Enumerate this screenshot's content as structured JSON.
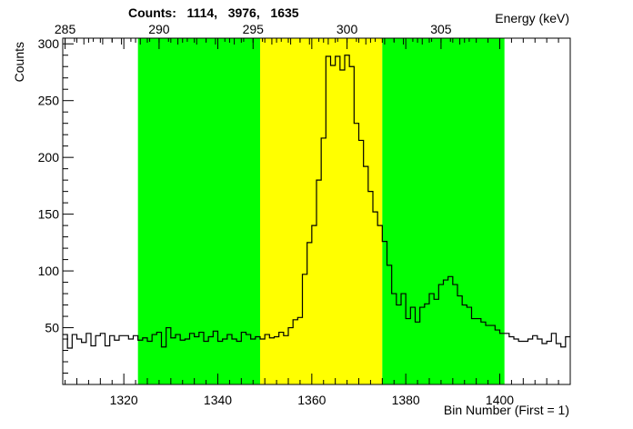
{
  "chart_data": {
    "type": "step",
    "title": "Counts:   1114,   3976,   1635",
    "xlabel": "Bin Number (First = 1)",
    "ylabel": "Counts",
    "x2label": "Energy (keV)",
    "xlim": [
      1307,
      1415
    ],
    "ylim": [
      0,
      305
    ],
    "x_ticks": [
      1320,
      1340,
      1360,
      1380,
      1400
    ],
    "y_ticks": [
      50,
      100,
      150,
      200,
      250,
      300
    ],
    "x2_ticks": [
      285,
      290,
      295,
      300,
      305
    ],
    "x2_bin_at_285": 1307.5,
    "x2_bins_per_unit": 4.0,
    "regions": [
      {
        "label": "left background",
        "start": 1323,
        "end": 1349,
        "color": "#00ff00"
      },
      {
        "label": "peak",
        "start": 1349,
        "end": 1375,
        "color": "#ffff00"
      },
      {
        "label": "right background",
        "start": 1375,
        "end": 1401,
        "color": "#00ff00"
      }
    ],
    "bins_start": 1307,
    "bin_width": 1,
    "values": [
      44,
      32,
      44,
      40,
      37,
      45,
      34,
      43,
      45,
      34,
      43,
      39,
      43,
      43,
      40,
      43,
      39,
      41,
      38,
      44,
      46,
      33,
      50,
      41,
      44,
      39,
      40,
      45,
      42,
      46,
      38,
      42,
      47,
      38,
      40,
      44,
      40,
      38,
      46,
      44,
      40,
      42,
      40,
      44,
      41,
      42,
      46,
      43,
      50,
      57,
      59,
      97,
      125,
      140,
      180,
      217,
      289,
      281,
      289,
      277,
      290,
      280,
      230,
      215,
      192,
      170,
      152,
      140,
      126,
      105,
      80,
      70,
      80,
      58,
      68,
      55,
      68,
      71,
      80,
      75,
      88,
      92,
      95,
      88,
      78,
      70,
      68,
      58,
      58,
      55,
      52,
      52,
      48,
      45,
      45,
      42,
      40,
      38,
      38,
      40,
      43,
      40,
      36,
      38,
      45,
      36,
      33,
      42
    ]
  }
}
